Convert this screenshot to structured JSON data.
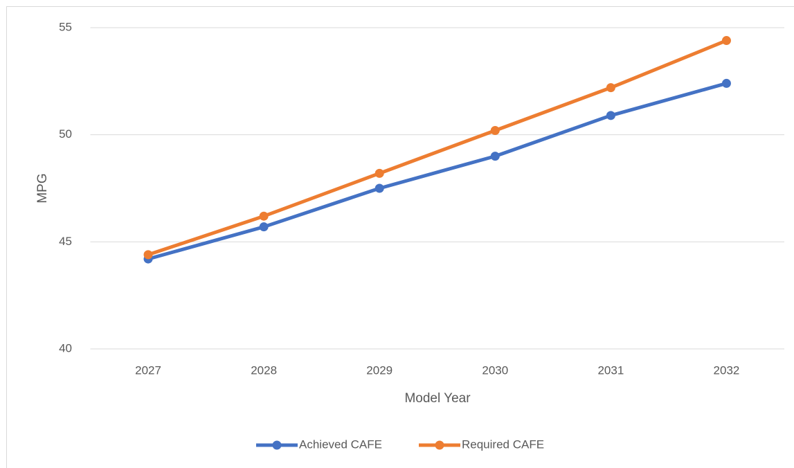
{
  "chart_data": {
    "type": "line",
    "x_label": "Model Year",
    "y_label": "MPG",
    "categories": [
      "2027",
      "2028",
      "2029",
      "2030",
      "2031",
      "2032"
    ],
    "series": [
      {
        "name": "Achieved CAFE",
        "color": "#4472c4",
        "values": [
          44.2,
          45.7,
          47.5,
          49.0,
          50.9,
          52.4
        ]
      },
      {
        "name": "Required CAFE",
        "color": "#ed7d31",
        "values": [
          44.4,
          46.2,
          48.2,
          50.2,
          52.2,
          54.4
        ]
      }
    ],
    "ylim": [
      40,
      55
    ],
    "yticks": [
      40,
      45,
      50,
      55
    ],
    "grid": true,
    "legend": "bottom"
  }
}
